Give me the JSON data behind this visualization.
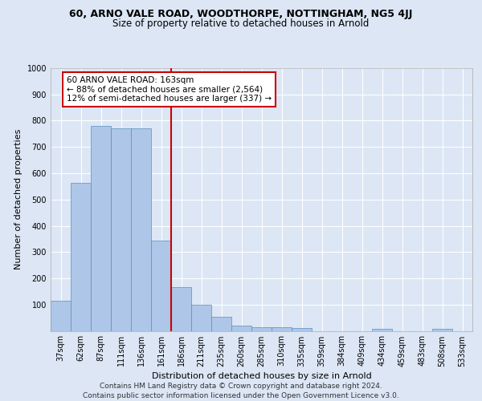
{
  "title1": "60, ARNO VALE ROAD, WOODTHORPE, NOTTINGHAM, NG5 4JJ",
  "title2": "Size of property relative to detached houses in Arnold",
  "xlabel": "Distribution of detached houses by size in Arnold",
  "ylabel": "Number of detached properties",
  "categories": [
    "37sqm",
    "62sqm",
    "87sqm",
    "111sqm",
    "136sqm",
    "161sqm",
    "186sqm",
    "211sqm",
    "235sqm",
    "260sqm",
    "285sqm",
    "310sqm",
    "335sqm",
    "359sqm",
    "384sqm",
    "409sqm",
    "434sqm",
    "459sqm",
    "483sqm",
    "508sqm",
    "533sqm"
  ],
  "values": [
    113,
    562,
    780,
    770,
    770,
    342,
    165,
    98,
    52,
    20,
    15,
    13,
    10,
    0,
    0,
    0,
    8,
    0,
    0,
    8,
    0
  ],
  "bar_color": "#aec6e8",
  "bar_edge_color": "#5a8fc2",
  "vline_x": 5.5,
  "vline_color": "#cc0000",
  "annotation_text": "60 ARNO VALE ROAD: 163sqm\n← 88% of detached houses are smaller (2,564)\n12% of semi-detached houses are larger (337) →",
  "annotation_box_color": "#ffffff",
  "annotation_box_edge": "#cc0000",
  "footer": "Contains HM Land Registry data © Crown copyright and database right 2024.\nContains public sector information licensed under the Open Government Licence v3.0.",
  "ylim": [
    0,
    1000
  ],
  "yticks": [
    0,
    100,
    200,
    300,
    400,
    500,
    600,
    700,
    800,
    900,
    1000
  ],
  "bg_color": "#dce6f5",
  "plot_bg": "#dce6f5",
  "grid_color": "#ffffff",
  "title1_fontsize": 9,
  "title2_fontsize": 8.5,
  "xlabel_fontsize": 8,
  "ylabel_fontsize": 8,
  "tick_fontsize": 7,
  "footer_fontsize": 6.5,
  "ann_fontsize": 7.5
}
